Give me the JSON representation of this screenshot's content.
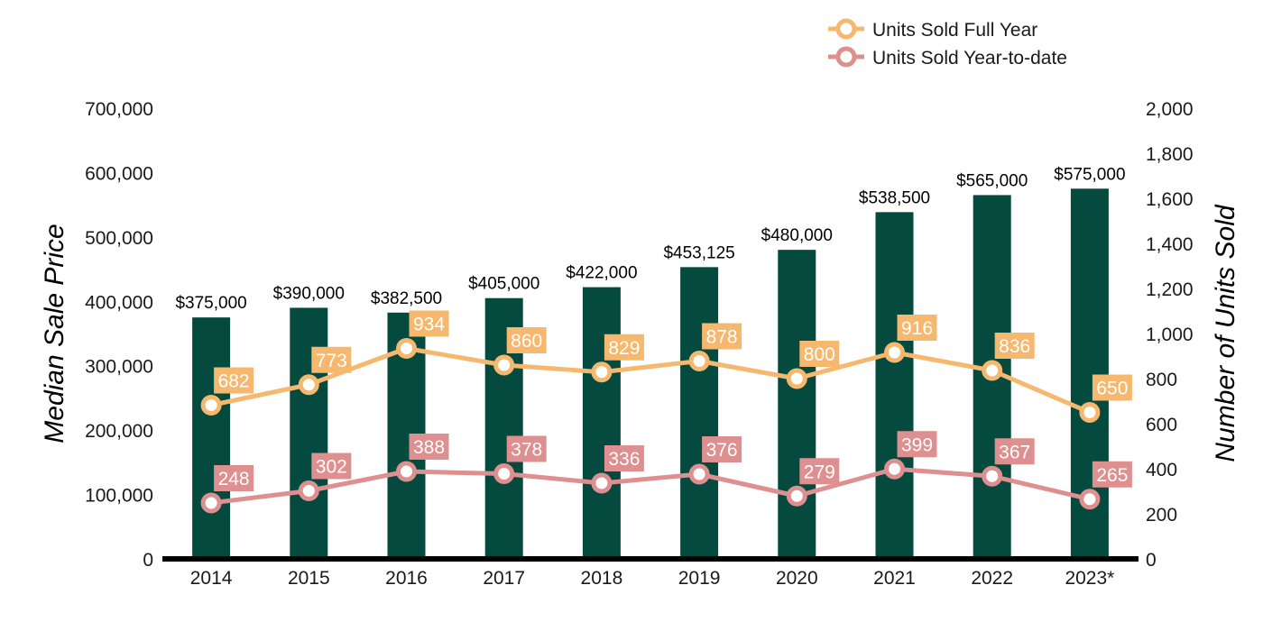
{
  "chart_data": {
    "type": "bar",
    "categories": [
      "2014",
      "2015",
      "2016",
      "2017",
      "2018",
      "2019",
      "2020",
      "2021",
      "2022",
      "2023*"
    ],
    "bar_series": {
      "values": [
        375000,
        390000,
        382500,
        405000,
        422000,
        453125,
        480000,
        538500,
        565000,
        575000
      ],
      "labels": [
        "$375,000",
        "$390,000",
        "$382,500",
        "$405,000",
        "$422,000",
        "$453,125",
        "$480,000",
        "$538,500",
        "$565,000",
        "$575,000"
      ],
      "color": "#054a3f"
    },
    "series": [
      {
        "name": "Units Sold Full Year",
        "type": "line",
        "axis": "right",
        "values": [
          682,
          773,
          934,
          860,
          829,
          878,
          800,
          916,
          836,
          650
        ],
        "labels": [
          "682",
          "773",
          "934",
          "860",
          "829",
          "878",
          "800",
          "916",
          "836",
          "650"
        ],
        "color": "#f5b86e"
      },
      {
        "name": "Units Sold Year-to-date",
        "type": "line",
        "axis": "right",
        "values": [
          248,
          302,
          388,
          378,
          336,
          376,
          279,
          399,
          367,
          265
        ],
        "labels": [
          "248",
          "302",
          "388",
          "378",
          "336",
          "376",
          "279",
          "399",
          "367",
          "265"
        ],
        "color": "#de8f8f"
      }
    ],
    "ylabel": "Median Sale Price",
    "y2label": "Number of Units Sold",
    "ylim": [
      0,
      700000
    ],
    "y2lim": [
      0,
      2000
    ],
    "yticks": [
      "0",
      "100,000",
      "200,000",
      "300,000",
      "400,000",
      "500,000",
      "600,000",
      "700,000"
    ],
    "y2ticks": [
      "0",
      "200",
      "400",
      "600",
      "800",
      "1,000",
      "1,200",
      "1,400",
      "1,600",
      "1,800",
      "2,000"
    ],
    "grid": false,
    "legend_position": "top-right"
  }
}
